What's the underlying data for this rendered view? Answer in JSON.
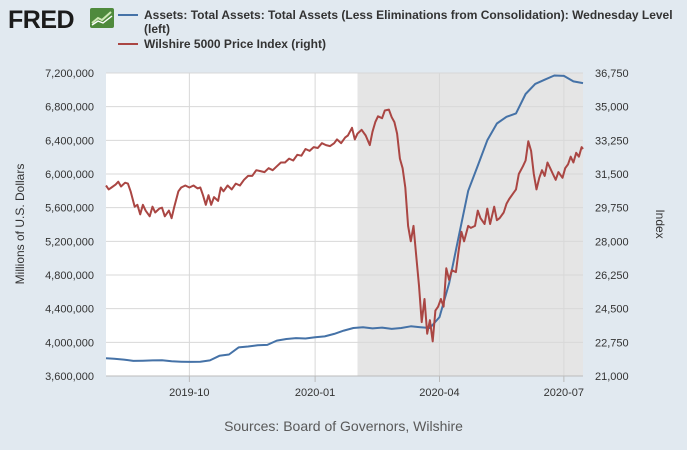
{
  "brand": {
    "name": "FRED",
    "icon": "line-chart-icon"
  },
  "legend": [
    {
      "label": "Assets: Total Assets: Total Assets (Less Eliminations from Consolidation): Wednesday Level (left)",
      "color": "#4572a7"
    },
    {
      "label": "Wilshire 5000 Price Index (right)",
      "color": "#aa4643"
    }
  ],
  "source": "Sources: Board of Governors, Wilshire",
  "chart_data": {
    "type": "line",
    "ylabel_left": "Millions of U.S. Dollars",
    "ylabel_right": "Index",
    "x_range": [
      "2019-08-01",
      "2020-07-15"
    ],
    "x_ticks": [
      {
        "date": "2019-10-01",
        "label": "2019-10"
      },
      {
        "date": "2020-01-01",
        "label": "2020-01"
      },
      {
        "date": "2020-04-01",
        "label": "2020-04"
      },
      {
        "date": "2020-07-01",
        "label": "2020-07"
      }
    ],
    "y_left": {
      "min": 3600000,
      "max": 7200000,
      "ticks": [
        3600000,
        4000000,
        4400000,
        4800000,
        5200000,
        5600000,
        6000000,
        6400000,
        6800000,
        7200000
      ],
      "tick_labels": [
        "3,600,000",
        "4,000,000",
        "4,400,000",
        "4,800,000",
        "5,200,000",
        "5,600,000",
        "6,000,000",
        "6,400,000",
        "6,800,000",
        "7,200,000"
      ]
    },
    "y_right": {
      "min": 21000,
      "max": 36750,
      "ticks": [
        21000,
        22750,
        24500,
        26250,
        28000,
        29750,
        31500,
        33250,
        35000,
        36750
      ],
      "tick_labels": [
        "21,000",
        "22,750",
        "24,500",
        "26,250",
        "28,000",
        "29,750",
        "31,500",
        "33,250",
        "35,000",
        "36,750"
      ]
    },
    "recession": {
      "start": "2020-02-01",
      "end": "2020-07-15",
      "color": "#e5e5e5"
    },
    "grid": true,
    "series": [
      {
        "name": "Assets: Total Assets: Total Assets (Less Eliminations from Consolidation): Wednesday Level (left)",
        "axis": "left",
        "color": "#4572a7",
        "points": [
          [
            "2019-08-01",
            3810000
          ],
          [
            "2019-08-07",
            3805000
          ],
          [
            "2019-08-14",
            3795000
          ],
          [
            "2019-08-21",
            3780000
          ],
          [
            "2019-08-28",
            3782000
          ],
          [
            "2019-09-04",
            3785000
          ],
          [
            "2019-09-11",
            3788000
          ],
          [
            "2019-09-18",
            3775000
          ],
          [
            "2019-09-25",
            3770000
          ],
          [
            "2019-10-02",
            3768000
          ],
          [
            "2019-10-09",
            3770000
          ],
          [
            "2019-10-16",
            3785000
          ],
          [
            "2019-10-23",
            3840000
          ],
          [
            "2019-10-30",
            3855000
          ],
          [
            "2019-11-06",
            3940000
          ],
          [
            "2019-11-13",
            3950000
          ],
          [
            "2019-11-20",
            3965000
          ],
          [
            "2019-11-27",
            3970000
          ],
          [
            "2019-12-04",
            4020000
          ],
          [
            "2019-12-11",
            4040000
          ],
          [
            "2019-12-18",
            4050000
          ],
          [
            "2019-12-25",
            4045000
          ],
          [
            "2020-01-01",
            4060000
          ],
          [
            "2020-01-08",
            4070000
          ],
          [
            "2020-01-15",
            4100000
          ],
          [
            "2020-01-22",
            4140000
          ],
          [
            "2020-01-29",
            4170000
          ],
          [
            "2020-02-05",
            4180000
          ],
          [
            "2020-02-12",
            4165000
          ],
          [
            "2020-02-19",
            4175000
          ],
          [
            "2020-02-26",
            4160000
          ],
          [
            "2020-03-04",
            4170000
          ],
          [
            "2020-03-11",
            4190000
          ],
          [
            "2020-03-18",
            4180000
          ],
          [
            "2020-03-25",
            4170000
          ],
          [
            "2020-04-01",
            4300000
          ],
          [
            "2020-04-08",
            4700000
          ],
          [
            "2020-04-15",
            5250000
          ],
          [
            "2020-04-22",
            5800000
          ],
          [
            "2020-04-29",
            6100000
          ],
          [
            "2020-05-06",
            6400000
          ],
          [
            "2020-05-13",
            6600000
          ],
          [
            "2020-05-20",
            6680000
          ],
          [
            "2020-05-27",
            6720000
          ],
          [
            "2020-06-03",
            6950000
          ],
          [
            "2020-06-10",
            7070000
          ],
          [
            "2020-06-17",
            7120000
          ],
          [
            "2020-06-24",
            7170000
          ],
          [
            "2020-07-01",
            7165000
          ],
          [
            "2020-07-08",
            7100000
          ],
          [
            "2020-07-15",
            7080000
          ]
        ]
      },
      {
        "name": "Wilshire 5000 Price Index (right)",
        "axis": "right",
        "color": "#aa4643",
        "points": [
          [
            "2019-08-01",
            30900
          ],
          [
            "2019-08-03",
            30700
          ],
          [
            "2019-08-05",
            30800
          ],
          [
            "2019-08-08",
            30950
          ],
          [
            "2019-08-10",
            31100
          ],
          [
            "2019-08-12",
            30850
          ],
          [
            "2019-08-15",
            31050
          ],
          [
            "2019-08-17",
            31000
          ],
          [
            "2019-08-19",
            30600
          ],
          [
            "2019-08-22",
            29800
          ],
          [
            "2019-08-24",
            29900
          ],
          [
            "2019-08-26",
            29400
          ],
          [
            "2019-08-28",
            29900
          ],
          [
            "2019-08-30",
            29600
          ],
          [
            "2019-09-02",
            29300
          ],
          [
            "2019-09-04",
            29800
          ],
          [
            "2019-09-06",
            29500
          ],
          [
            "2019-09-09",
            29700
          ],
          [
            "2019-09-11",
            29750
          ],
          [
            "2019-09-13",
            29300
          ],
          [
            "2019-09-16",
            29600
          ],
          [
            "2019-09-18",
            29200
          ],
          [
            "2019-09-20",
            29800
          ],
          [
            "2019-09-23",
            30600
          ],
          [
            "2019-09-25",
            30800
          ],
          [
            "2019-09-28",
            30900
          ],
          [
            "2019-10-01",
            30800
          ],
          [
            "2019-10-04",
            30900
          ],
          [
            "2019-10-07",
            30750
          ],
          [
            "2019-10-09",
            30800
          ],
          [
            "2019-10-11",
            30400
          ],
          [
            "2019-10-13",
            29900
          ],
          [
            "2019-10-15",
            30400
          ],
          [
            "2019-10-17",
            29900
          ],
          [
            "2019-10-19",
            30300
          ],
          [
            "2019-10-22",
            30100
          ],
          [
            "2019-10-24",
            30800
          ],
          [
            "2019-10-26",
            30600
          ],
          [
            "2019-10-29",
            30900
          ],
          [
            "2019-11-01",
            30700
          ],
          [
            "2019-11-04",
            31000
          ],
          [
            "2019-11-07",
            30900
          ],
          [
            "2019-11-10",
            31200
          ],
          [
            "2019-11-13",
            31400
          ],
          [
            "2019-11-16",
            31400
          ],
          [
            "2019-11-19",
            31700
          ],
          [
            "2019-11-22",
            31650
          ],
          [
            "2019-11-25",
            31600
          ],
          [
            "2019-11-28",
            31800
          ],
          [
            "2019-12-01",
            31700
          ],
          [
            "2019-12-04",
            31900
          ],
          [
            "2019-12-07",
            32100
          ],
          [
            "2019-12-10",
            32100
          ],
          [
            "2019-12-13",
            32300
          ],
          [
            "2019-12-16",
            32200
          ],
          [
            "2019-12-19",
            32500
          ],
          [
            "2019-12-22",
            32450
          ],
          [
            "2019-12-25",
            32800
          ],
          [
            "2019-12-28",
            32700
          ],
          [
            "2019-12-31",
            32900
          ],
          [
            "2020-01-03",
            32850
          ],
          [
            "2020-01-06",
            33100
          ],
          [
            "2020-01-09",
            33000
          ],
          [
            "2020-01-12",
            32950
          ],
          [
            "2020-01-15",
            33100
          ],
          [
            "2020-01-17",
            33300
          ],
          [
            "2020-01-20",
            33100
          ],
          [
            "2020-01-23",
            33400
          ],
          [
            "2020-01-25",
            33500
          ],
          [
            "2020-01-28",
            33900
          ],
          [
            "2020-01-30",
            33300
          ],
          [
            "2020-02-01",
            33600
          ],
          [
            "2020-02-04",
            33800
          ],
          [
            "2020-02-07",
            33500
          ],
          [
            "2020-02-10",
            33000
          ],
          [
            "2020-02-12",
            33700
          ],
          [
            "2020-02-14",
            34200
          ],
          [
            "2020-02-16",
            34500
          ],
          [
            "2020-02-19",
            34400
          ],
          [
            "2020-02-21",
            34800
          ],
          [
            "2020-02-24",
            34850
          ],
          [
            "2020-02-26",
            34450
          ],
          [
            "2020-02-28",
            34200
          ],
          [
            "2020-03-01",
            33600
          ],
          [
            "2020-03-03",
            32300
          ],
          [
            "2020-03-05",
            31800
          ],
          [
            "2020-03-07",
            30800
          ],
          [
            "2020-03-09",
            28800
          ],
          [
            "2020-03-11",
            28000
          ],
          [
            "2020-03-13",
            28800
          ],
          [
            "2020-03-15",
            27200
          ],
          [
            "2020-03-17",
            25700
          ],
          [
            "2020-03-19",
            23800
          ],
          [
            "2020-03-21",
            25000
          ],
          [
            "2020-03-23",
            23200
          ],
          [
            "2020-03-25",
            23900
          ],
          [
            "2020-03-27",
            22800
          ],
          [
            "2020-03-29",
            24400
          ],
          [
            "2020-03-31",
            24600
          ],
          [
            "2020-04-02",
            25000
          ],
          [
            "2020-04-04",
            24600
          ],
          [
            "2020-04-06",
            26600
          ],
          [
            "2020-04-08",
            26000
          ],
          [
            "2020-04-10",
            26500
          ],
          [
            "2020-04-13",
            26400
          ],
          [
            "2020-04-15",
            27500
          ],
          [
            "2020-04-17",
            28500
          ],
          [
            "2020-04-19",
            28000
          ],
          [
            "2020-04-22",
            28800
          ],
          [
            "2020-04-24",
            28700
          ],
          [
            "2020-04-27",
            28800
          ],
          [
            "2020-04-29",
            29600
          ],
          [
            "2020-05-01",
            29200
          ],
          [
            "2020-05-04",
            28900
          ],
          [
            "2020-05-06",
            29700
          ],
          [
            "2020-05-08",
            28900
          ],
          [
            "2020-05-11",
            29800
          ],
          [
            "2020-05-13",
            29100
          ],
          [
            "2020-05-15",
            29200
          ],
          [
            "2020-05-18",
            29500
          ],
          [
            "2020-05-20",
            29950
          ],
          [
            "2020-05-22",
            30200
          ],
          [
            "2020-05-25",
            30500
          ],
          [
            "2020-05-27",
            30700
          ],
          [
            "2020-05-29",
            31500
          ],
          [
            "2020-06-01",
            31900
          ],
          [
            "2020-06-03",
            32200
          ],
          [
            "2020-06-05",
            33200
          ],
          [
            "2020-06-07",
            32700
          ],
          [
            "2020-06-09",
            31500
          ],
          [
            "2020-06-11",
            30700
          ],
          [
            "2020-06-13",
            31300
          ],
          [
            "2020-06-15",
            31700
          ],
          [
            "2020-06-17",
            31400
          ],
          [
            "2020-06-19",
            32100
          ],
          [
            "2020-06-21",
            31800
          ],
          [
            "2020-06-23",
            31500
          ],
          [
            "2020-06-25",
            31200
          ],
          [
            "2020-06-27",
            31600
          ],
          [
            "2020-06-30",
            31300
          ],
          [
            "2020-07-02",
            31800
          ],
          [
            "2020-07-04",
            32000
          ],
          [
            "2020-07-06",
            32400
          ],
          [
            "2020-07-08",
            32100
          ],
          [
            "2020-07-10",
            32600
          ],
          [
            "2020-07-12",
            32400
          ],
          [
            "2020-07-14",
            32900
          ],
          [
            "2020-07-15",
            32800
          ]
        ]
      }
    ]
  }
}
